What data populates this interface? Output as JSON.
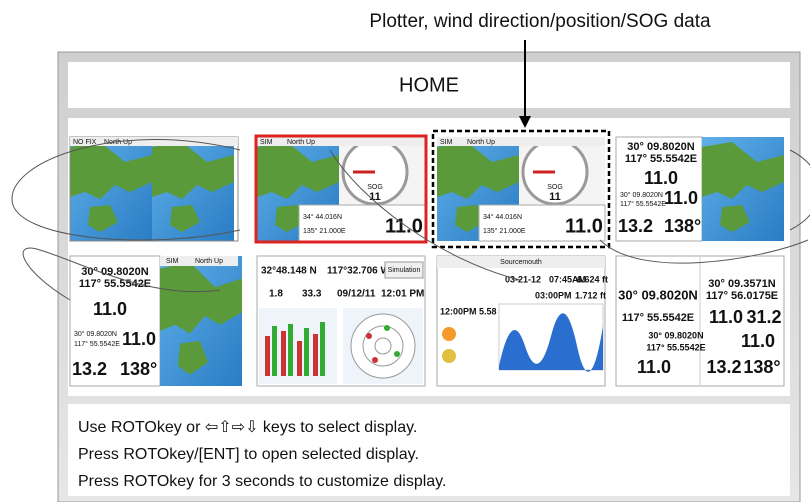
{
  "annotation": "Plotter, wind direction/position/SOG data",
  "home_title": "HOME",
  "instructions": [
    "Use ROTOkey or ⇦⇧⇨⇩ keys to select display.",
    "Press ROTOkey/[ENT] to open selected display.",
    "Press ROTOkey for 3 seconds to customize display."
  ],
  "displays": [
    {
      "labels": [
        "NO FIX",
        "North Up"
      ]
    },
    {
      "labels": [
        "SIM",
        "North Up",
        "SOG",
        "11",
        "34° 44.016N",
        "135° 21.000E",
        "11.0"
      ]
    },
    {
      "labels": [
        "SIM",
        "North Up",
        "SOG",
        "11",
        "34° 44.016N",
        "135° 21.000E",
        "11.0"
      ]
    },
    {
      "labels": [
        "30° 09.8020N",
        "117° 55.5542E",
        "11.0",
        "30° 09.8020N",
        "117° 55.5542E",
        "11.0",
        "13.2",
        "138°"
      ]
    },
    {
      "labels": [
        "30° 09.8020N",
        "117° 55.5542E",
        "11.0",
        "30° 09.8020N",
        "117° 55.5542E",
        "11.0",
        "13.2",
        "138°",
        "SIM",
        "North Up"
      ]
    },
    {
      "labels": [
        "32°48.148 N",
        "117°32.706 W",
        "Simulation",
        "1.8",
        "33.3",
        "09/12/11",
        "12:01 PM"
      ]
    },
    {
      "labels": [
        "Sourcemouth",
        "03-21-12",
        "07:45AM",
        "6.624 ft",
        "03:00PM",
        "1.712 ft",
        "12:00PM",
        "5.58 ft"
      ]
    },
    {
      "labels": [
        "30° 09.8020N",
        "30° 09.3571N",
        "117° 56.0175E",
        "117° 55.5542E",
        "11.0",
        "31.2",
        "30° 09.8020N",
        "117° 55.5542E",
        "11.0",
        "11.0",
        "13.2",
        "138°"
      ]
    }
  ]
}
